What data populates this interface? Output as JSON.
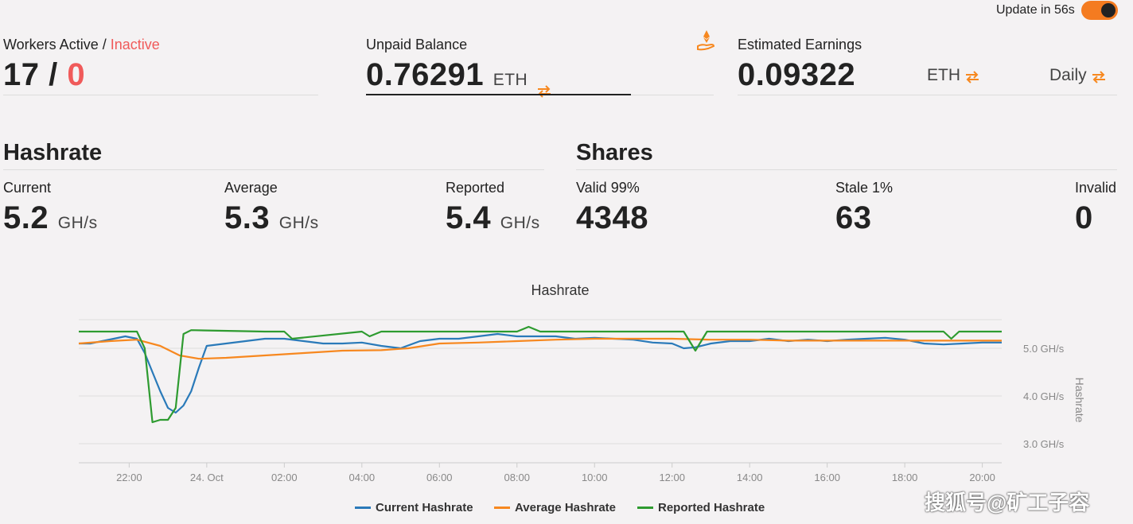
{
  "update": {
    "label": "Update in 56s",
    "toggle_on": true
  },
  "workers": {
    "label_active": "Workers Active",
    "sep": " / ",
    "label_inactive": "Inactive",
    "active": "17",
    "slash": " / ",
    "inactive": "0"
  },
  "unpaid": {
    "label": "Unpaid Balance",
    "value": "0.76291",
    "currency": "ETH"
  },
  "earnings": {
    "label": "Estimated Earnings",
    "value": "0.09322",
    "currency": "ETH",
    "period": "Daily"
  },
  "hashrate": {
    "title": "Hashrate",
    "current": {
      "label": "Current",
      "value": "5.2",
      "unit": "GH/s"
    },
    "average": {
      "label": "Average",
      "value": "5.3",
      "unit": "GH/s"
    },
    "reported": {
      "label": "Reported",
      "value": "5.4",
      "unit": "GH/s"
    }
  },
  "shares": {
    "title": "Shares",
    "valid": {
      "label": "Valid 99%",
      "value": "4348"
    },
    "stale": {
      "label": "Stale 1%",
      "value": "63"
    },
    "invalid": {
      "label": "Invalid",
      "value": "0"
    }
  },
  "colors": {
    "accent": "#f7881f",
    "inactive": "#f05a5a",
    "current": "#2a7ab9",
    "average": "#f7881f",
    "reported": "#2e9b30"
  },
  "watermark": "搜狐号@矿工子容",
  "chart_data": {
    "type": "line",
    "title": "Hashrate",
    "ylabel": "Hashrate",
    "ylim": [
      2.6,
      5.6
    ],
    "yticks": [
      3.0,
      4.0,
      5.0
    ],
    "ytick_labels": [
      "3.0 GH/s",
      "4.0 GH/s",
      "5.0 GH/s"
    ],
    "x_range": [
      20.7,
      20.5
    ],
    "xtick_labels": [
      "22:00",
      "24. Oct",
      "02:00",
      "04:00",
      "06:00",
      "08:00",
      "10:00",
      "12:00",
      "14:00",
      "16:00",
      "18:00",
      "20:00"
    ],
    "xtick_values": [
      22,
      24,
      26,
      28,
      30,
      32,
      34,
      36,
      38,
      40,
      42,
      44
    ],
    "grid": true,
    "legend": "bottom",
    "series": [
      {
        "name": "Current Hashrate",
        "color": "#2a7ab9",
        "x": [
          20.7,
          21.0,
          21.3,
          21.6,
          21.9,
          22.2,
          22.4,
          22.6,
          22.8,
          23.0,
          23.2,
          23.4,
          23.6,
          23.8,
          24.0,
          24.5,
          25.0,
          25.5,
          26.0,
          26.5,
          27.0,
          27.5,
          28.0,
          28.5,
          29.0,
          29.5,
          30.0,
          30.5,
          31.0,
          31.5,
          32.0,
          32.5,
          33.0,
          33.5,
          34.0,
          34.5,
          35.0,
          35.5,
          36.0,
          36.3,
          36.6,
          37.0,
          37.5,
          38.0,
          38.5,
          39.0,
          39.5,
          40.0,
          40.5,
          41.0,
          41.5,
          42.0,
          42.5,
          43.0,
          43.5,
          44.0,
          44.5
        ],
        "y": [
          5.1,
          5.1,
          5.15,
          5.2,
          5.25,
          5.2,
          4.9,
          4.5,
          4.1,
          3.75,
          3.65,
          3.8,
          4.1,
          4.6,
          5.05,
          5.1,
          5.15,
          5.2,
          5.2,
          5.15,
          5.1,
          5.1,
          5.12,
          5.05,
          5.0,
          5.15,
          5.2,
          5.2,
          5.25,
          5.3,
          5.25,
          5.25,
          5.25,
          5.2,
          5.22,
          5.2,
          5.18,
          5.12,
          5.1,
          5.0,
          5.02,
          5.1,
          5.15,
          5.15,
          5.2,
          5.15,
          5.18,
          5.15,
          5.18,
          5.2,
          5.22,
          5.18,
          5.1,
          5.08,
          5.1,
          5.12,
          5.12
        ]
      },
      {
        "name": "Average Hashrate",
        "color": "#f7881f",
        "x": [
          20.7,
          21.5,
          22.2,
          22.8,
          23.3,
          23.8,
          24.5,
          25.5,
          26.5,
          27.5,
          28.5,
          29.2,
          30.0,
          31.0,
          32.0,
          33.0,
          34.0,
          35.0,
          36.0,
          37.0,
          38.0,
          39.0,
          40.0,
          41.0,
          42.0,
          43.0,
          44.0,
          44.5
        ],
        "y": [
          5.1,
          5.15,
          5.18,
          5.05,
          4.85,
          4.78,
          4.8,
          4.85,
          4.9,
          4.95,
          4.96,
          5.0,
          5.1,
          5.12,
          5.15,
          5.18,
          5.2,
          5.2,
          5.2,
          5.18,
          5.18,
          5.16,
          5.16,
          5.16,
          5.16,
          5.16,
          5.16,
          5.16
        ]
      },
      {
        "name": "Reported Hashrate",
        "color": "#2e9b30",
        "x": [
          20.7,
          21.5,
          22.0,
          22.2,
          22.4,
          22.6,
          22.8,
          23.0,
          23.2,
          23.4,
          23.6,
          25.5,
          26.0,
          26.2,
          28.0,
          28.2,
          28.5,
          32.0,
          32.3,
          32.6,
          36.3,
          36.6,
          36.9,
          43.0,
          43.2,
          43.4,
          44.5
        ],
        "y": [
          5.35,
          5.35,
          5.35,
          5.35,
          5.0,
          3.45,
          3.5,
          3.5,
          3.75,
          5.3,
          5.38,
          5.35,
          5.35,
          5.2,
          5.35,
          5.25,
          5.35,
          5.35,
          5.45,
          5.35,
          5.35,
          4.95,
          5.35,
          5.35,
          5.2,
          5.35,
          5.35
        ]
      }
    ]
  }
}
